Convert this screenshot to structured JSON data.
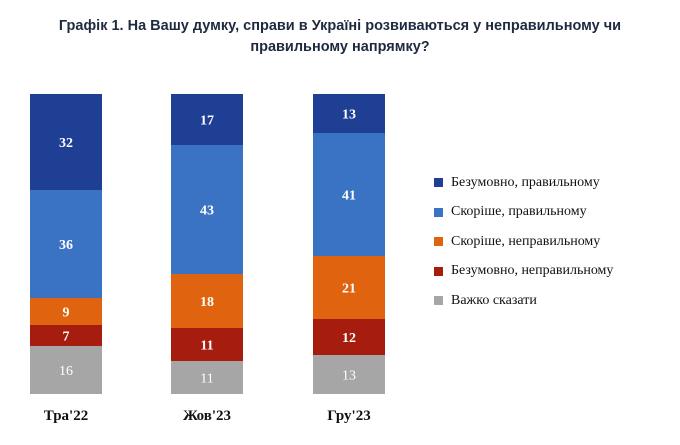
{
  "title": "Графік 1. На Вашу думку, справи в Україні розвиваються у неправильному чи правильному напрямку?",
  "chart_data": {
    "type": "bar",
    "stacked": true,
    "title": "Графік 1. На Вашу думку, справи в Україні розвиваються у неправильному чи правильному напрямку?",
    "xlabel": "",
    "ylabel": "",
    "ylim": [
      0,
      100
    ],
    "grid": false,
    "legend_position": "right",
    "categories": [
      "Тра'22",
      "Жов'23",
      "Гру'23"
    ],
    "series": [
      {
        "name": "Безумовно, правильному",
        "color": "#1f3f94",
        "label_color": "#ffffff",
        "values": [
          32,
          17,
          13
        ]
      },
      {
        "name": "Скоріше, правильному",
        "color": "#3b73c4",
        "label_color": "#ffffff",
        "values": [
          36,
          43,
          41
        ]
      },
      {
        "name": "Скоріше, неправильному",
        "color": "#e0640f",
        "label_color": "#ffffff",
        "values": [
          9,
          18,
          21
        ]
      },
      {
        "name": "Безумовно, неправильному",
        "color": "#a61c0e",
        "label_color": "#ffffff",
        "values": [
          7,
          11,
          12
        ]
      },
      {
        "name": "Важко сказати",
        "color": "#a6a6a6",
        "label_color": "#ffffff",
        "values": [
          16,
          11,
          13
        ]
      }
    ]
  }
}
